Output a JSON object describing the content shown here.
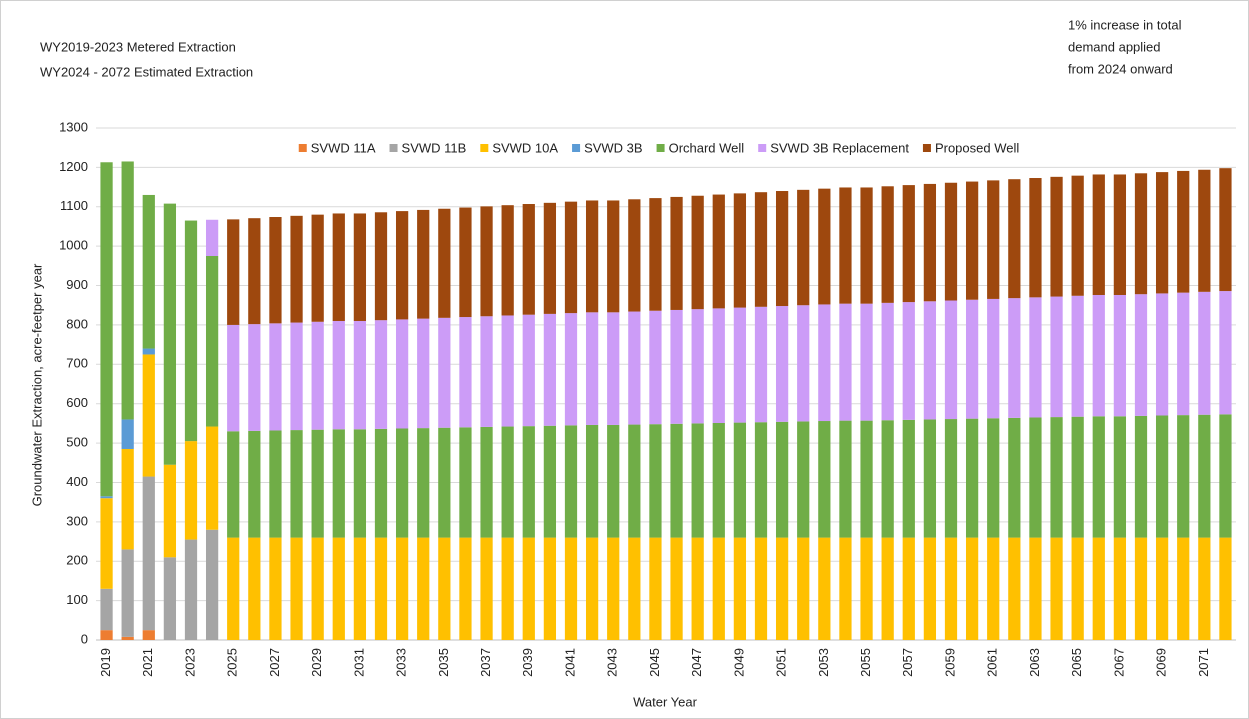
{
  "chart_data": {
    "type": "stacked_bar",
    "title": "WY2019-2023 Metered Extraction",
    "subtitle": "WY2024 - 2072 Estimated Extraction",
    "annotations": [
      "1% increase  in total",
      "demand applied",
      "from 2024 onward"
    ],
    "x_label": "Water Year",
    "y_label": "Groundwater Extraction, acre-feetper year",
    "categories": [
      "2019",
      null,
      "2021",
      null,
      "2023",
      null,
      "2025",
      null,
      "2027",
      null,
      "2029",
      null,
      "2031",
      null,
      "2033",
      null,
      "2035",
      null,
      "2037",
      null,
      "2039",
      null,
      "2041",
      null,
      "2043",
      null,
      "2045",
      null,
      "2047",
      null,
      "2049",
      null,
      "2051",
      null,
      "2053",
      null,
      "2055",
      null,
      "2057",
      null,
      "2059",
      null,
      "2061",
      null,
      "2063",
      null,
      "2065",
      null,
      "2067",
      null,
      "2069",
      null,
      "2071",
      null
    ],
    "ylim": [
      0,
      1300
    ],
    "yticks": [
      0,
      100,
      200,
      300,
      400,
      500,
      600,
      700,
      800,
      900,
      1000,
      1100,
      1200,
      1300
    ],
    "grid": true,
    "legend": "top",
    "series": [
      {
        "name": "SVWD 11A",
        "color": "#ed7d31",
        "values": [
          25,
          8,
          25,
          0,
          0,
          0,
          0,
          0,
          0,
          0,
          0,
          0,
          0,
          0,
          0,
          0,
          0,
          0,
          0,
          0,
          0,
          0,
          0,
          0,
          0,
          0,
          0,
          0,
          0,
          0,
          0,
          0,
          0,
          0,
          0,
          0,
          0,
          0,
          0,
          0,
          0,
          0,
          0,
          0,
          0,
          0,
          0,
          0,
          0,
          0,
          0,
          0,
          0,
          0
        ]
      },
      {
        "name": "SVWD 11B",
        "color": "#a5a5a5",
        "values": [
          105,
          222,
          390,
          210,
          255,
          280,
          0,
          0,
          0,
          0,
          0,
          0,
          0,
          0,
          0,
          0,
          0,
          0,
          0,
          0,
          0,
          0,
          0,
          0,
          0,
          0,
          0,
          0,
          0,
          0,
          0,
          0,
          0,
          0,
          0,
          0,
          0,
          0,
          0,
          0,
          0,
          0,
          0,
          0,
          0,
          0,
          0,
          0,
          0,
          0,
          0,
          0,
          0,
          0
        ]
      },
      {
        "name": "SVWD 10A",
        "color": "#ffc000",
        "values": [
          230,
          255,
          310,
          235,
          250,
          262,
          260,
          260,
          260,
          260,
          260,
          260,
          260,
          260,
          260,
          260,
          260,
          260,
          260,
          260,
          260,
          260,
          260,
          260,
          260,
          260,
          260,
          260,
          260,
          260,
          260,
          260,
          260,
          260,
          260,
          260,
          260,
          260,
          260,
          260,
          260,
          260,
          260,
          260,
          260,
          260,
          260,
          260,
          260,
          260,
          260,
          260,
          260,
          260
        ]
      },
      {
        "name": "SVWD 3B",
        "color": "#5b9bd5",
        "values": [
          5,
          75,
          15,
          0,
          0,
          0,
          0,
          0,
          0,
          0,
          0,
          0,
          0,
          0,
          0,
          0,
          0,
          0,
          0,
          0,
          0,
          0,
          0,
          0,
          0,
          0,
          0,
          0,
          0,
          0,
          0,
          0,
          0,
          0,
          0,
          0,
          0,
          0,
          0,
          0,
          0,
          0,
          0,
          0,
          0,
          0,
          0,
          0,
          0,
          0,
          0,
          0,
          0,
          0
        ]
      },
      {
        "name": "Orchard Well",
        "color": "#70ad47",
        "values": [
          848,
          655,
          390,
          663,
          560,
          433,
          270,
          271,
          272,
          273,
          274,
          275,
          275,
          276,
          277,
          278,
          279,
          280,
          281,
          282,
          283,
          284,
          285,
          286,
          286,
          287,
          288,
          289,
          290,
          291,
          292,
          293,
          294,
          295,
          296,
          297,
          297,
          298,
          299,
          300,
          301,
          302,
          303,
          304,
          305,
          306,
          307,
          308,
          308,
          309,
          310,
          311,
          312,
          313
        ]
      },
      {
        "name": "SVWD 3B Replacement",
        "color": "#cc9cf7",
        "values": [
          0,
          0,
          0,
          0,
          0,
          92,
          270,
          271,
          272,
          273,
          274,
          275,
          275,
          276,
          277,
          278,
          279,
          280,
          281,
          282,
          283,
          284,
          285,
          286,
          286,
          287,
          288,
          289,
          290,
          291,
          292,
          293,
          294,
          295,
          296,
          297,
          297,
          298,
          299,
          300,
          301,
          302,
          303,
          304,
          305,
          306,
          307,
          308,
          308,
          309,
          310,
          311,
          312,
          313
        ]
      },
      {
        "name": "Proposed Well",
        "color": "#9e480e",
        "values": [
          0,
          0,
          0,
          0,
          0,
          0,
          268,
          269,
          270,
          271,
          272,
          273,
          273,
          274,
          275,
          276,
          277,
          278,
          279,
          280,
          281,
          282,
          283,
          284,
          284,
          285,
          286,
          287,
          288,
          289,
          290,
          291,
          292,
          293,
          294,
          295,
          295,
          296,
          297,
          298,
          299,
          300,
          301,
          302,
          303,
          304,
          305,
          306,
          306,
          307,
          308,
          309,
          310,
          312
        ]
      }
    ]
  }
}
